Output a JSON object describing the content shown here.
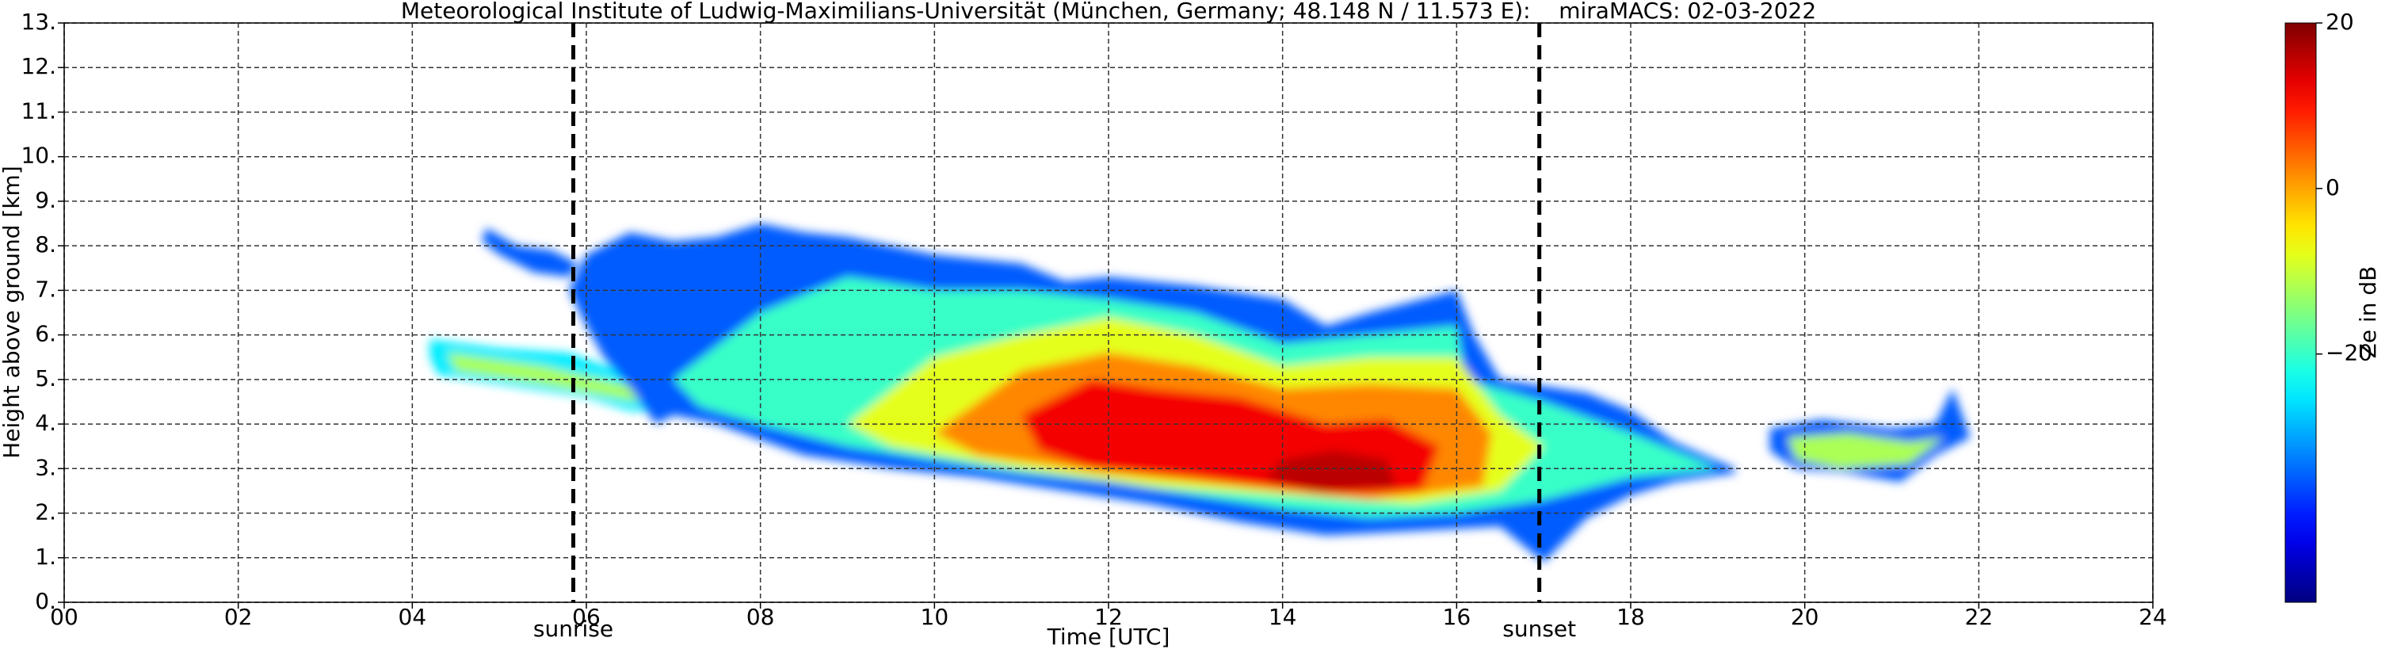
{
  "chart_data": {
    "type": "contour",
    "title": "Meteorological Institute of Ludwig-Maximilians-Universität (München, Germany; 48.148 N / 11.573 E):    miraMACS: 02-03-2022",
    "x_label": "Time [UTC]",
    "y_label": "Height above ground [km]",
    "colorbar_label": "Ze in dB",
    "xlim": [
      0,
      24
    ],
    "ylim": [
      0,
      13
    ],
    "clim": [
      -50,
      20
    ],
    "colormap": "jet",
    "grid": true,
    "xticks": [
      {
        "value": 0,
        "label": "00"
      },
      {
        "value": 2,
        "label": "02"
      },
      {
        "value": 4,
        "label": "04"
      },
      {
        "value": 6,
        "label": "06"
      },
      {
        "value": 8,
        "label": "08"
      },
      10,
      12,
      14,
      16,
      18,
      20,
      22,
      24
    ],
    "yticks": [
      {
        "value": 0,
        "label": "0."
      },
      {
        "value": 1,
        "label": "1."
      },
      {
        "value": 2,
        "label": "2."
      },
      {
        "value": 3,
        "label": "3."
      },
      {
        "value": 4,
        "label": "4."
      },
      {
        "value": 5,
        "label": "5."
      },
      {
        "value": 6,
        "label": "6."
      },
      {
        "value": 7,
        "label": "7."
      },
      {
        "value": 8,
        "label": "8."
      },
      {
        "value": 9,
        "label": "9."
      },
      {
        "value": 10,
        "label": "10."
      },
      {
        "value": 11,
        "label": "11."
      },
      {
        "value": 12,
        "label": "12."
      },
      {
        "value": 13,
        "label": "13."
      }
    ],
    "cticks": [
      {
        "value": -20,
        "label": "−20"
      },
      0,
      20
    ],
    "annotations": [
      {
        "text": "sunrise",
        "x": 5.85
      },
      {
        "text": "sunset",
        "x": 16.95
      }
    ],
    "contours": [
      {
        "level": -35,
        "x": [
          4.85,
          5.2,
          5.6,
          5.9,
          5.8,
          5.4,
          5.0,
          4.8
        ],
        "y": [
          8.4,
          8.0,
          7.9,
          7.6,
          7.3,
          7.4,
          7.8,
          8.1
        ]
      },
      {
        "level": -25,
        "x": [
          4.2,
          5.0,
          5.8,
          6.5,
          6.9,
          6.9,
          6.5,
          6.0,
          5.0,
          4.3,
          4.2
        ],
        "y": [
          5.9,
          5.7,
          5.6,
          5.1,
          4.7,
          4.3,
          4.3,
          4.6,
          4.9,
          5.1,
          5.5
        ]
      },
      {
        "level": -12,
        "x": [
          4.4,
          5.5,
          6.6,
          6.6,
          5.5,
          4.5
        ],
        "y": [
          5.6,
          5.3,
          4.8,
          4.5,
          4.9,
          5.2
        ]
      },
      {
        "level": -35,
        "x": [
          6.0,
          6.5,
          7.0,
          7.5,
          8.0,
          8.5,
          9.0,
          10.0,
          11.0,
          11.5,
          12.0,
          13.0,
          14.0,
          14.5,
          15.0,
          16.0,
          16.2,
          16.5,
          17.5,
          18.0,
          18.5,
          19.2,
          19.2,
          18.5,
          18.0,
          17.5,
          17.0,
          16.5,
          15.5,
          14.5,
          13.5,
          12.5,
          11.5,
          10.5,
          9.5,
          8.5,
          7.5,
          7.0,
          6.8,
          6.5,
          6.2,
          6.0,
          5.8
        ],
        "y": [
          7.8,
          8.3,
          8.1,
          8.2,
          8.5,
          8.3,
          8.2,
          7.8,
          7.6,
          7.2,
          7.3,
          7.1,
          6.8,
          6.2,
          6.5,
          7.0,
          6.0,
          5.0,
          4.7,
          4.3,
          3.6,
          3.0,
          2.9,
          2.7,
          2.4,
          1.9,
          0.9,
          1.7,
          1.6,
          1.5,
          1.8,
          2.2,
          2.5,
          2.8,
          3.0,
          3.3,
          4.0,
          4.2,
          4.0,
          4.8,
          5.5,
          6.2,
          7.0
        ]
      },
      {
        "level": -35,
        "x": [
          19.6,
          20.2,
          21.0,
          21.5,
          21.7,
          21.9,
          21.5,
          21.1,
          20.5,
          19.9,
          19.6
        ],
        "y": [
          3.9,
          4.1,
          3.9,
          4.0,
          4.8,
          3.7,
          3.3,
          2.7,
          2.9,
          3.0,
          3.4
        ]
      },
      {
        "level": -20,
        "x": [
          7.0,
          8.0,
          9.0,
          10.0,
          11.0,
          12.0,
          13.0,
          14.0,
          15.0,
          16.0,
          16.1,
          17.0,
          18.0,
          19.0,
          18.0,
          17.0,
          16.0,
          15.0,
          14.0,
          13.0,
          12.0,
          11.0,
          10.0,
          9.0,
          8.0,
          7.3
        ],
        "y": [
          5.0,
          6.5,
          7.3,
          7.0,
          7.0,
          6.8,
          6.5,
          5.8,
          6.0,
          6.2,
          5.0,
          4.5,
          3.8,
          3.0,
          2.8,
          2.3,
          2.0,
          1.9,
          2.1,
          2.4,
          2.7,
          2.9,
          3.2,
          3.5,
          4.0,
          4.4
        ]
      },
      {
        "level": -12,
        "x": [
          19.8,
          20.5,
          21.2,
          21.6,
          21.2,
          20.4,
          19.9
        ],
        "y": [
          3.7,
          3.8,
          3.6,
          3.7,
          3.1,
          3.0,
          3.2
        ]
      },
      {
        "level": -8,
        "x": [
          9.0,
          10.0,
          11.0,
          12.0,
          13.0,
          14.0,
          15.0,
          16.0,
          16.5,
          17.0,
          16.5,
          15.5,
          14.0,
          12.5,
          11.0,
          9.5
        ],
        "y": [
          4.0,
          5.5,
          6.0,
          6.4,
          6.0,
          5.3,
          5.5,
          5.5,
          4.2,
          3.5,
          2.5,
          2.2,
          2.4,
          2.6,
          3.0,
          3.5
        ]
      },
      {
        "level": 2,
        "x": [
          10.0,
          11.0,
          12.0,
          13.0,
          14.0,
          15.0,
          16.0,
          16.4,
          16.3,
          15.0,
          13.5,
          12.0,
          10.5
        ],
        "y": [
          3.8,
          5.2,
          5.6,
          5.3,
          4.8,
          4.9,
          4.8,
          3.8,
          2.6,
          2.3,
          2.6,
          2.9,
          3.3
        ]
      },
      {
        "level": 12,
        "x": [
          11.0,
          11.8,
          12.5,
          13.5,
          14.5,
          15.2,
          15.8,
          15.6,
          14.5,
          13.0,
          11.8,
          11.2
        ],
        "y": [
          4.2,
          5.0,
          4.8,
          4.6,
          4.0,
          4.1,
          3.5,
          2.5,
          2.4,
          2.8,
          3.0,
          3.4
        ]
      },
      {
        "level": 16,
        "x": [
          14.0,
          14.6,
          15.2,
          15.3,
          14.4,
          13.8
        ],
        "y": [
          3.2,
          3.4,
          3.2,
          2.6,
          2.5,
          2.8
        ]
      }
    ]
  }
}
